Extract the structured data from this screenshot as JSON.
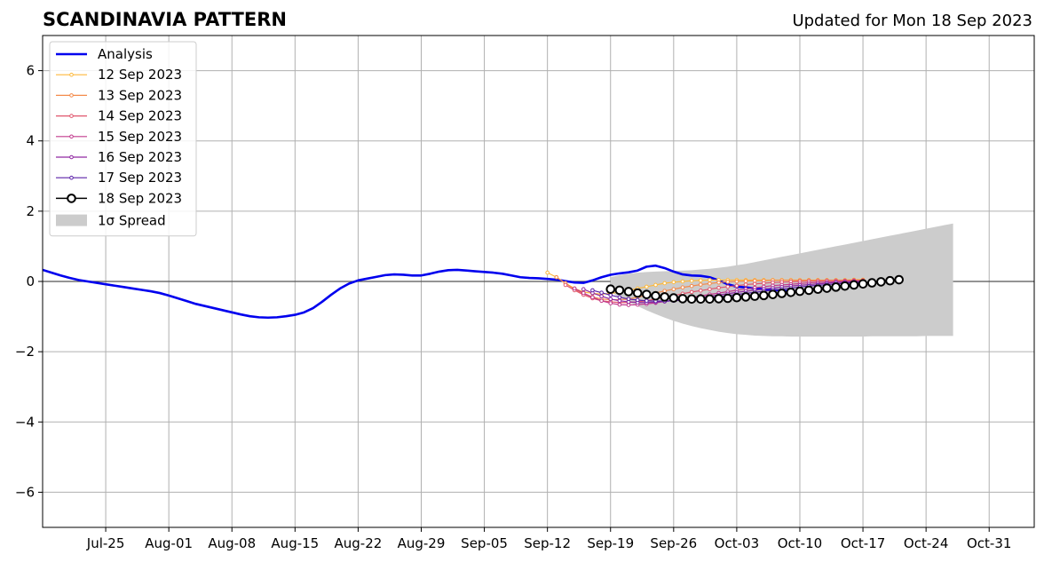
{
  "chart_data": {
    "type": "line",
    "title": "SCANDINAVIA PATTERN",
    "updated": "Updated for Mon 18 Sep 2023",
    "xlabel": "",
    "ylabel": "",
    "ylim": [
      -7,
      7
    ],
    "xlim": [
      "2023-07-18",
      "2023-11-05"
    ],
    "grid": true,
    "legend_position": "top-left",
    "x_ticks": [
      "2023-07-25",
      "2023-08-01",
      "2023-08-08",
      "2023-08-15",
      "2023-08-22",
      "2023-08-29",
      "2023-09-05",
      "2023-09-12",
      "2023-09-19",
      "2023-09-26",
      "2023-10-03",
      "2023-10-10",
      "2023-10-17",
      "2023-10-24",
      "2023-10-31"
    ],
    "x_tick_labels": [
      "Jul-25",
      "Aug-01",
      "Aug-08",
      "Aug-15",
      "Aug-22",
      "Aug-29",
      "Sep-05",
      "Sep-12",
      "Sep-19",
      "Sep-26",
      "Oct-03",
      "Oct-10",
      "Oct-17",
      "Oct-24",
      "Oct-31"
    ],
    "y_ticks": [
      -6,
      -4,
      -2,
      0,
      2,
      4,
      6
    ],
    "y_tick_labels": [
      "−6",
      "−4",
      "−2",
      "0",
      "2",
      "4",
      "6"
    ],
    "analysis": {
      "name": "Analysis",
      "color": "#0000ee",
      "start": "2023-07-18",
      "values": [
        0.33,
        0.25,
        0.17,
        0.1,
        0.04,
        0.0,
        -0.04,
        -0.08,
        -0.12,
        -0.16,
        -0.2,
        -0.24,
        -0.28,
        -0.33,
        -0.4,
        -0.48,
        -0.56,
        -0.64,
        -0.7,
        -0.76,
        -0.82,
        -0.88,
        -0.94,
        -0.99,
        -1.02,
        -1.03,
        -1.02,
        -0.99,
        -0.95,
        -0.88,
        -0.76,
        -0.58,
        -0.38,
        -0.2,
        -0.06,
        0.03,
        0.08,
        0.13,
        0.18,
        0.2,
        0.19,
        0.17,
        0.17,
        0.22,
        0.28,
        0.32,
        0.33,
        0.31,
        0.29,
        0.27,
        0.25,
        0.22,
        0.17,
        0.12,
        0.1,
        0.09,
        0.07,
        0.05,
        0.01,
        -0.03,
        -0.04,
        0.03,
        0.12,
        0.19,
        0.23,
        0.26,
        0.31,
        0.42,
        0.45,
        0.38,
        0.28,
        0.2,
        0.17,
        0.16,
        0.12,
        0.03,
        -0.08,
        -0.15,
        -0.17,
        -0.2,
        -0.22,
        -0.24,
        -0.26,
        -0.28,
        -0.3
      ]
    },
    "forecasts": [
      {
        "name": "12 Sep 2023",
        "color": "#fdb93b",
        "start": "2023-09-12",
        "values": [
          0.25,
          0.12,
          -0.05,
          -0.2,
          -0.3,
          -0.34,
          -0.36,
          -0.34,
          -0.3,
          -0.25,
          -0.2,
          -0.15,
          -0.1,
          -0.05,
          -0.02,
          0.0,
          0.02,
          0.03,
          0.04,
          0.04,
          0.04,
          0.04,
          0.04,
          0.04,
          0.04,
          0.04,
          0.04,
          0.04,
          0.04,
          0.04,
          0.04,
          0.04,
          0.04,
          0.04,
          0.05,
          0.05
        ]
      },
      {
        "name": "13 Sep 2023",
        "color": "#f48a4b",
        "start": "2023-09-13",
        "values": [
          0.12,
          -0.05,
          -0.22,
          -0.35,
          -0.44,
          -0.5,
          -0.52,
          -0.52,
          -0.5,
          -0.45,
          -0.39,
          -0.33,
          -0.27,
          -0.22,
          -0.17,
          -0.13,
          -0.09,
          -0.06,
          -0.03,
          -0.01,
          0.0,
          0.01,
          0.02,
          0.02,
          0.03,
          0.03,
          0.03,
          0.03,
          0.03,
          0.03,
          0.03,
          0.03,
          0.03,
          0.04,
          0.04
        ]
      },
      {
        "name": "14 Sep 2023",
        "color": "#e0566d",
        "start": "2023-09-14",
        "values": [
          -0.1,
          -0.25,
          -0.38,
          -0.48,
          -0.55,
          -0.58,
          -0.6,
          -0.6,
          -0.58,
          -0.55,
          -0.5,
          -0.45,
          -0.4,
          -0.35,
          -0.3,
          -0.26,
          -0.22,
          -0.18,
          -0.15,
          -0.12,
          -0.09,
          -0.07,
          -0.05,
          -0.03,
          -0.02,
          -0.01,
          0.0,
          0.01,
          0.01,
          0.02,
          0.02,
          0.02,
          0.03,
          0.03
        ]
      },
      {
        "name": "15 Sep 2023",
        "color": "#c23b8d",
        "start": "2023-09-15",
        "values": [
          -0.2,
          -0.33,
          -0.45,
          -0.55,
          -0.62,
          -0.66,
          -0.67,
          -0.66,
          -0.64,
          -0.61,
          -0.57,
          -0.53,
          -0.49,
          -0.45,
          -0.41,
          -0.37,
          -0.33,
          -0.29,
          -0.25,
          -0.22,
          -0.18,
          -0.15,
          -0.12,
          -0.1,
          -0.08,
          -0.06,
          -0.04,
          -0.03,
          -0.02,
          -0.01,
          0.0,
          0.01,
          0.01
        ]
      },
      {
        "name": "16 Sep 2023",
        "color": "#9029a2",
        "start": "2023-09-16",
        "values": [
          -0.22,
          -0.33,
          -0.42,
          -0.5,
          -0.55,
          -0.58,
          -0.6,
          -0.6,
          -0.59,
          -0.57,
          -0.54,
          -0.51,
          -0.48,
          -0.45,
          -0.42,
          -0.38,
          -0.35,
          -0.31,
          -0.28,
          -0.25,
          -0.22,
          -0.19,
          -0.16,
          -0.13,
          -0.11,
          -0.09,
          -0.07,
          -0.05,
          -0.03,
          -0.02,
          -0.01,
          0.0
        ]
      },
      {
        "name": "17 Sep 2023",
        "color": "#5b21a8",
        "start": "2023-09-17",
        "values": [
          -0.25,
          -0.32,
          -0.39,
          -0.45,
          -0.5,
          -0.53,
          -0.55,
          -0.56,
          -0.56,
          -0.55,
          -0.53,
          -0.51,
          -0.49,
          -0.46,
          -0.43,
          -0.4,
          -0.37,
          -0.34,
          -0.31,
          -0.28,
          -0.25,
          -0.22,
          -0.19,
          -0.16,
          -0.13,
          -0.11,
          -0.09,
          -0.07,
          -0.05,
          -0.03,
          -0.02
        ]
      },
      {
        "name": "18 Sep 2023",
        "color": "#000000",
        "start": "2023-09-19",
        "values": [
          -0.22,
          -0.25,
          -0.29,
          -0.33,
          -0.37,
          -0.41,
          -0.44,
          -0.47,
          -0.49,
          -0.5,
          -0.5,
          -0.5,
          -0.49,
          -0.48,
          -0.46,
          -0.44,
          -0.42,
          -0.4,
          -0.37,
          -0.34,
          -0.31,
          -0.28,
          -0.25,
          -0.22,
          -0.19,
          -0.16,
          -0.13,
          -0.1,
          -0.07,
          -0.04,
          -0.01,
          0.02,
          0.05
        ]
      }
    ],
    "spread": {
      "name": "1σ Spread",
      "color": "#cccccc",
      "start": "2023-09-19",
      "upper": [
        0.12,
        0.18,
        0.22,
        0.25,
        0.27,
        0.28,
        0.29,
        0.3,
        0.31,
        0.32,
        0.34,
        0.36,
        0.39,
        0.42,
        0.46,
        0.5,
        0.55,
        0.6,
        0.65,
        0.7,
        0.75,
        0.8,
        0.85,
        0.9,
        0.95,
        1.0,
        1.05,
        1.1,
        1.15,
        1.2,
        1.25,
        1.3,
        1.35,
        1.4,
        1.45,
        1.5,
        1.55,
        1.6,
        1.65
      ],
      "lower": [
        -0.3,
        -0.45,
        -0.58,
        -0.7,
        -0.82,
        -0.93,
        -1.03,
        -1.12,
        -1.2,
        -1.27,
        -1.33,
        -1.38,
        -1.43,
        -1.47,
        -1.5,
        -1.52,
        -1.54,
        -1.55,
        -1.56,
        -1.56,
        -1.57,
        -1.57,
        -1.57,
        -1.57,
        -1.57,
        -1.57,
        -1.57,
        -1.57,
        -1.57,
        -1.56,
        -1.56,
        -1.56,
        -1.56,
        -1.56,
        -1.56,
        -1.55,
        -1.55,
        -1.55,
        -1.55
      ]
    }
  }
}
